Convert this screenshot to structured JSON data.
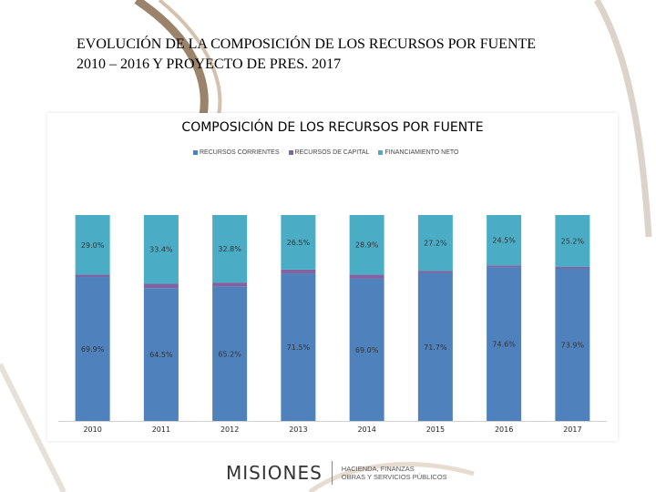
{
  "slide": {
    "title_line1": "EVOLUCIÓN DE LA COMPOSICIÓN DE LOS RECURSOS POR FUENTE",
    "title_line2": "2010 – 2016 Y PROYECTO DE PRES. 2017"
  },
  "footer": {
    "logo_text": "MISIONES",
    "ministry_line1": "HACIENDA, FINANZAS",
    "ministry_line2": "OBRAS Y SERVICIOS PÚBLICOS"
  },
  "chart_data": {
    "type": "bar",
    "stacked": true,
    "normalized_percent": true,
    "title": "COMPOSICIÓN DE LOS RECURSOS POR FUENTE",
    "legend_position": "top",
    "grid": false,
    "categories": [
      "2010",
      "2011",
      "2012",
      "2013",
      "2014",
      "2015",
      "2016",
      "2017"
    ],
    "series": [
      {
        "name": "RECURSOS CORRIENTES",
        "color": "#4f81bd",
        "values": [
          69.9,
          64.5,
          65.2,
          71.5,
          69.0,
          71.7,
          74.6,
          73.9
        ],
        "labels": [
          "69.9%",
          "64.5%",
          "65.2%",
          "71.5%",
          "69.0%",
          "71.7%",
          "74.6%",
          "73.9%"
        ]
      },
      {
        "name": "RECURSOS DE CAPITAL",
        "color": "#8064a2",
        "values": [
          1.1,
          2.1,
          2.0,
          2.0,
          2.0,
          1.1,
          0.9,
          0.9
        ],
        "labels": [
          "1.1%",
          "2.1%",
          "2.0%",
          "2.0%",
          "2.0%",
          "1.1%",
          "0.9%",
          "0.9%"
        ]
      },
      {
        "name": "FINANCIAMIENTO NETO",
        "color": "#4bacc6",
        "values": [
          29.0,
          33.4,
          32.8,
          26.5,
          28.9,
          27.2,
          24.5,
          25.2
        ],
        "labels": [
          "29.0%",
          "33.4%",
          "32.8%",
          "26.5%",
          "28.9%",
          "27.2%",
          "24.5%",
          "25.2%"
        ]
      }
    ]
  }
}
